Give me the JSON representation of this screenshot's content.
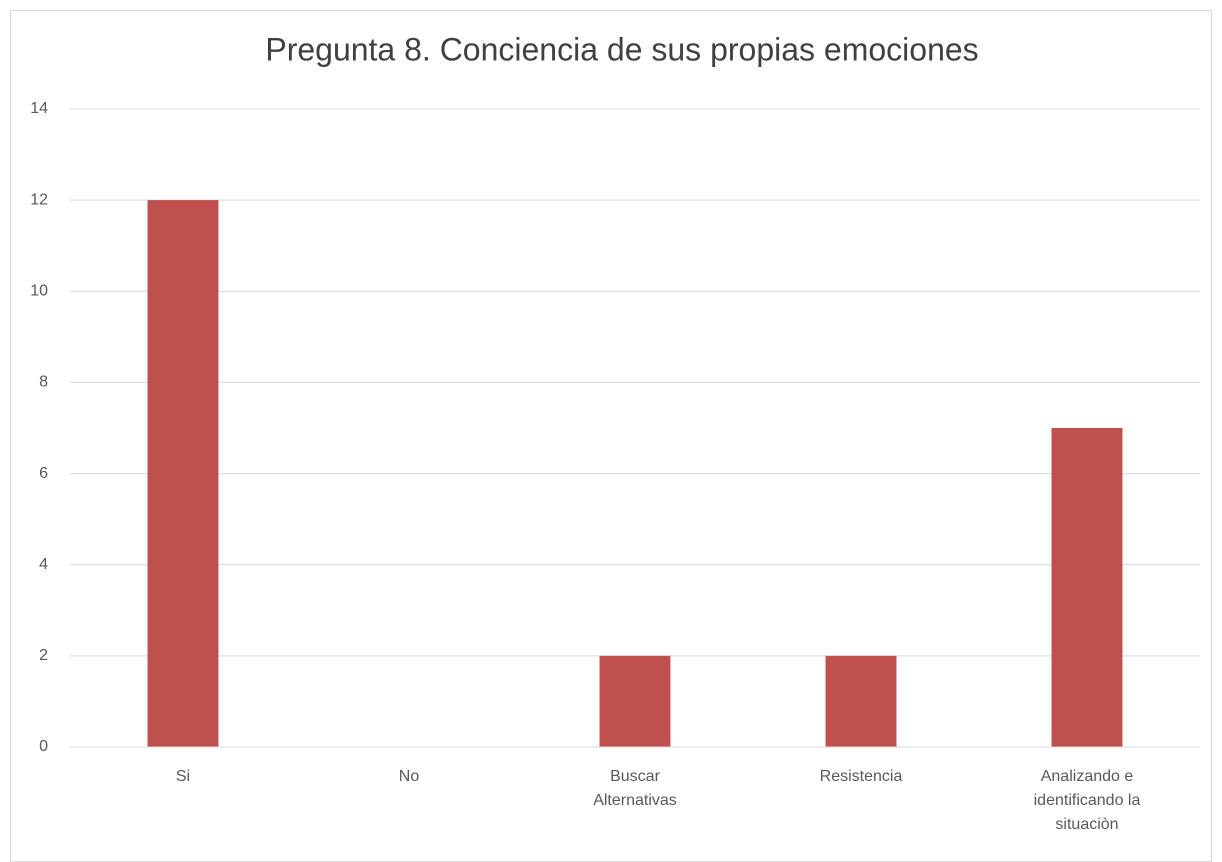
{
  "chart_data": {
    "type": "bar",
    "title": "Pregunta 8. Conciencia de sus propias emociones",
    "categories": [
      "Si",
      "No",
      "Buscar Alternativas",
      "Resistencia",
      "Analizando e identificando la situaciòn"
    ],
    "values": [
      12,
      0,
      2,
      2,
      7
    ],
    "color": "#c0504d",
    "ylim": [
      0,
      14
    ],
    "yticks": [
      0,
      2,
      4,
      6,
      8,
      10,
      12,
      14
    ],
    "grid": true
  }
}
